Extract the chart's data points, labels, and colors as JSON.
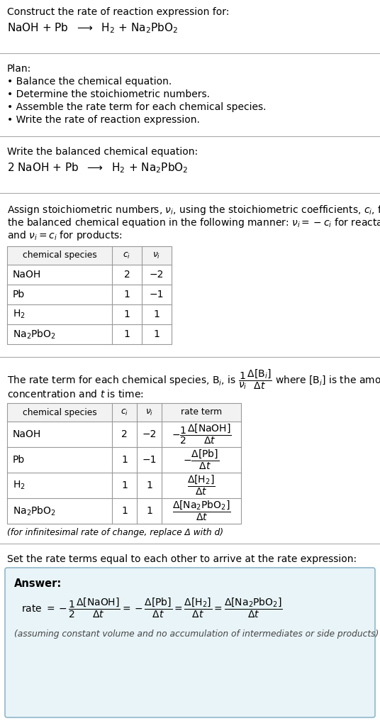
{
  "bg_color": "#ffffff",
  "text_color": "#000000",
  "answer_bg": "#e8f4f8",
  "answer_border": "#90b8c8",
  "title_line1": "Construct the rate of reaction expression for:",
  "plan_header": "Plan:",
  "plan_items": [
    "• Balance the chemical equation.",
    "• Determine the stoichiometric numbers.",
    "• Assemble the rate term for each chemical species.",
    "• Write the rate of reaction expression."
  ],
  "balanced_header": "Write the balanced chemical equation:",
  "stoich_intro_lines": [
    "Assign stoichiometric numbers, νᵢ, using the stoichiometric coefficients, cᵢ, from",
    "the balanced chemical equation in the following manner: νᵢ = −cᵢ for reactants",
    "and νᵢ = cᵢ for products:"
  ],
  "rate_intro_line2": "concentration and t is time:",
  "infinitesimal_note": "(for infinitesimal rate of change, replace Δ with d)",
  "set_equal_text": "Set the rate terms equal to each other to arrive at the rate expression:",
  "answer_label": "Answer:",
  "answer_note": "(assuming constant volume and no accumulation of intermediates or side products)",
  "separator_color": "#aaaaaa",
  "table_border_color": "#999999",
  "table_header_bg": "#f2f2f2"
}
